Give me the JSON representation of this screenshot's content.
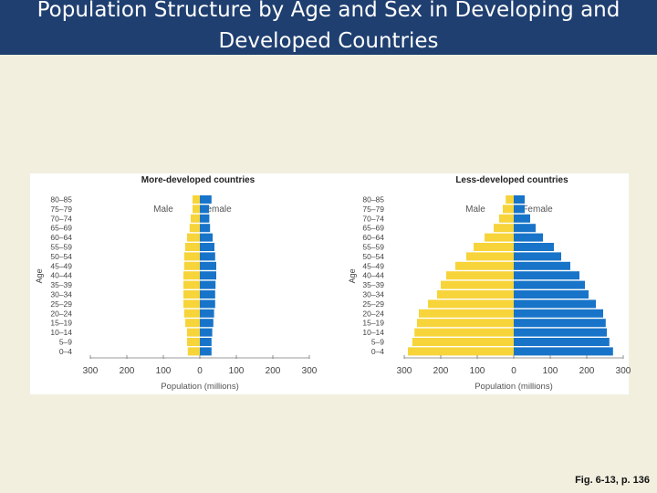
{
  "slide": {
    "title": "Population Structure by Age and Sex in Developing and Developed Countries",
    "figure_reference": "Fig. 6-13, p. 136"
  },
  "colors": {
    "header_bg": "#1f3f70",
    "slide_bg": "#f2efdf",
    "male": "#f7d43a",
    "female": "#1874c8",
    "text": "#333333"
  },
  "chart_data": [
    {
      "type": "bar",
      "orientation": "horizontal-population-pyramid",
      "title": "More-developed countries",
      "xlabel": "Population (millions)",
      "ylabel": "Age",
      "xlim": [
        -300,
        300
      ],
      "xticks": [
        -300,
        -200,
        -100,
        0,
        100,
        200,
        300
      ],
      "xtick_labels": [
        "300",
        "200",
        "100",
        "0",
        "100",
        "200",
        "300"
      ],
      "legend": [
        "Male",
        "Female"
      ],
      "categories": [
        "0–4",
        "5–9",
        "10–14",
        "15–19",
        "20–24",
        "25–29",
        "30–34",
        "35–39",
        "40–44",
        "45–49",
        "50–54",
        "55–59",
        "60–64",
        "65–69",
        "70–74",
        "75–79",
        "80–85"
      ],
      "series": [
        {
          "name": "Male",
          "values": [
            33,
            35,
            35,
            40,
            43,
            45,
            45,
            45,
            45,
            43,
            43,
            40,
            35,
            28,
            25,
            20,
            20
          ]
        },
        {
          "name": "Female",
          "values": [
            32,
            32,
            34,
            37,
            39,
            42,
            42,
            43,
            45,
            45,
            42,
            40,
            35,
            28,
            26,
            25,
            32
          ]
        }
      ]
    },
    {
      "type": "bar",
      "orientation": "horizontal-population-pyramid",
      "title": "Less-developed countries",
      "xlabel": "Population (millions)",
      "ylabel": "Age",
      "xlim": [
        -300,
        300
      ],
      "xticks": [
        -300,
        -200,
        -100,
        0,
        100,
        200,
        300
      ],
      "xtick_labels": [
        "300",
        "200",
        "100",
        "0",
        "100",
        "200",
        "300"
      ],
      "legend": [
        "Male",
        "Female"
      ],
      "categories": [
        "0–4",
        "5–9",
        "10–14",
        "15–19",
        "20–24",
        "25–29",
        "30–34",
        "35–39",
        "40–44",
        "45–49",
        "50–54",
        "55–59",
        "60–64",
        "65–69",
        "70–74",
        "75–79",
        "80–85"
      ],
      "series": [
        {
          "name": "Male",
          "values": [
            290,
            278,
            272,
            265,
            260,
            235,
            210,
            200,
            185,
            160,
            130,
            110,
            80,
            55,
            40,
            30,
            22
          ]
        },
        {
          "name": "Female",
          "values": [
            272,
            262,
            255,
            252,
            245,
            225,
            205,
            195,
            180,
            155,
            130,
            110,
            80,
            60,
            45,
            30,
            30
          ]
        }
      ]
    }
  ]
}
